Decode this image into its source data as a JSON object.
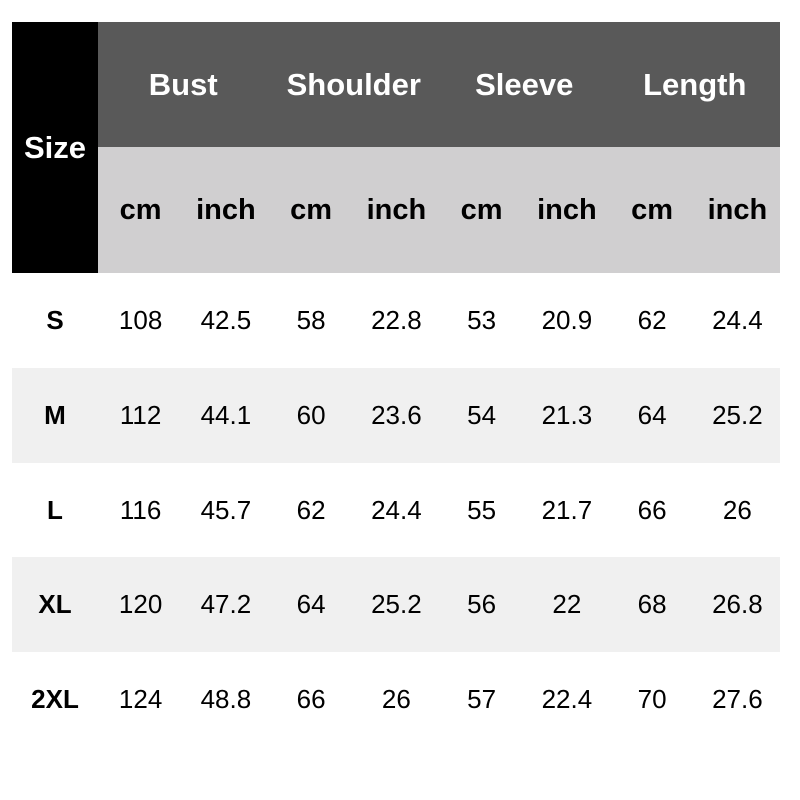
{
  "header": {
    "size_label": "Size",
    "groups": [
      "Bust",
      "Shoulder",
      "Sleeve",
      "Length"
    ],
    "units": [
      "cm",
      "inch",
      "cm",
      "inch",
      "cm",
      "inch",
      "cm",
      "inch"
    ]
  },
  "rows": [
    {
      "size": "S",
      "values": [
        "108",
        "42.5",
        "58",
        "22.8",
        "53",
        "20.9",
        "62",
        "24.4"
      ]
    },
    {
      "size": "M",
      "values": [
        "112",
        "44.1",
        "60",
        "23.6",
        "54",
        "21.3",
        "64",
        "25.2"
      ]
    },
    {
      "size": "L",
      "values": [
        "116",
        "45.7",
        "62",
        "24.4",
        "55",
        "21.7",
        "66",
        "26"
      ]
    },
    {
      "size": "XL",
      "values": [
        "120",
        "47.2",
        "64",
        "25.2",
        "56",
        "22",
        "68",
        "26.8"
      ]
    },
    {
      "size": "2XL",
      "values": [
        "124",
        "48.8",
        "66",
        "26",
        "57",
        "22.4",
        "70",
        "27.6"
      ]
    }
  ],
  "colors": {
    "size_header": "#000000",
    "group_header": "#595959",
    "unit_header": "#d0cfd0",
    "stripe": "#f0f0f0"
  }
}
